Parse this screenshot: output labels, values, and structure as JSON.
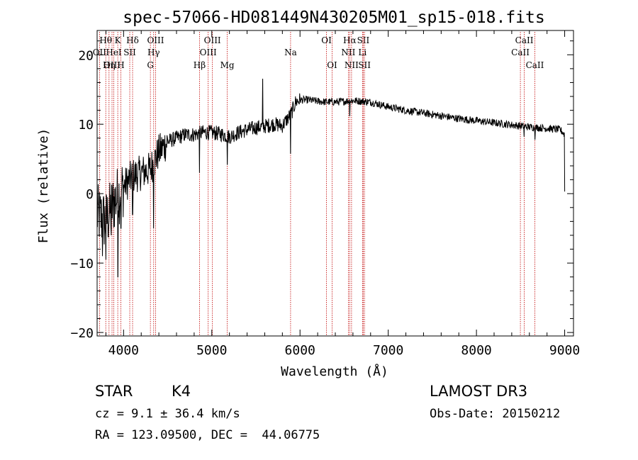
{
  "chart_data": {
    "type": "line",
    "title": "spec-57066-HD081449N430205M01_sp15-018.fits",
    "xlabel": "Wavelength (Å)",
    "ylabel": "Flux (relative)",
    "xlim": [
      3700,
      9100
    ],
    "ylim": [
      -20.5,
      23.5
    ],
    "x_ticks": [
      4000,
      5000,
      6000,
      7000,
      8000,
      9000
    ],
    "y_ticks": [
      -20,
      -10,
      0,
      10,
      20
    ],
    "grid": false,
    "series": [
      {
        "name": "spectrum",
        "color": "#000000",
        "continuum": [
          [
            3700,
            -3
          ],
          [
            3800,
            -4
          ],
          [
            3900,
            -1
          ],
          [
            4000,
            1
          ],
          [
            4100,
            2.5
          ],
          [
            4200,
            3
          ],
          [
            4300,
            3.5
          ],
          [
            4400,
            6
          ],
          [
            4500,
            7.5
          ],
          [
            4600,
            8
          ],
          [
            4700,
            8.5
          ],
          [
            4800,
            8.5
          ],
          [
            4900,
            8.8
          ],
          [
            5000,
            8.8
          ],
          [
            5100,
            8.6
          ],
          [
            5200,
            8.2
          ],
          [
            5300,
            8.8
          ],
          [
            5400,
            9.2
          ],
          [
            5500,
            9.5
          ],
          [
            5600,
            9.7
          ],
          [
            5700,
            10
          ],
          [
            5800,
            9.8
          ],
          [
            5900,
            11.5
          ],
          [
            5950,
            13.2
          ],
          [
            6000,
            13.5
          ],
          [
            6100,
            13.5
          ],
          [
            6200,
            13.3
          ],
          [
            6300,
            13.2
          ],
          [
            6400,
            13.2
          ],
          [
            6500,
            13.3
          ],
          [
            6600,
            13.4
          ],
          [
            6700,
            13.3
          ],
          [
            6800,
            13.2
          ],
          [
            7000,
            12.5
          ],
          [
            7200,
            12
          ],
          [
            7400,
            11.6
          ],
          [
            7600,
            11.2
          ],
          [
            7800,
            10.8
          ],
          [
            8000,
            10.5
          ],
          [
            8200,
            10.2
          ],
          [
            8400,
            9.9
          ],
          [
            8600,
            9.6
          ],
          [
            8800,
            9.4
          ],
          [
            8950,
            9.2
          ],
          [
            9000,
            8.5
          ]
        ],
        "features": [
          [
            3760,
            -9
          ],
          [
            3800,
            -9.5
          ],
          [
            3860,
            -6
          ],
          [
            3935,
            -12
          ],
          [
            3970,
            -5
          ],
          [
            4102,
            -3
          ],
          [
            4340,
            -5
          ],
          [
            4860,
            3
          ],
          [
            5175,
            4.2
          ],
          [
            5577,
            16.5
          ],
          [
            5893,
            5.8
          ],
          [
            6563,
            11.2
          ],
          [
            8540,
            8.2
          ],
          [
            8663,
            7.8
          ],
          [
            9000,
            0.3
          ]
        ]
      }
    ],
    "line_ids": [
      {
        "label": "Hθ",
        "wave": 3798,
        "row": 1
      },
      {
        "label": "OII",
        "wave": 3727,
        "row": 2
      },
      {
        "label": "OIII",
        "wave": 3869,
        "row": 3
      },
      {
        "label": "K",
        "wave": 3934,
        "row": 1
      },
      {
        "label": "HeI",
        "wave": 3889,
        "row": 2
      },
      {
        "label": "Hη",
        "wave": 3835,
        "row": 3
      },
      {
        "label": "SII",
        "wave": 4070,
        "row": 2
      },
      {
        "label": "H",
        "wave": 3969,
        "row": 3
      },
      {
        "label": "Hδ",
        "wave": 4102,
        "row": 1
      },
      {
        "label": "OIII",
        "wave": 4363,
        "row": 1
      },
      {
        "label": "Hγ",
        "wave": 4341,
        "row": 2
      },
      {
        "label": "G",
        "wave": 4304,
        "row": 3
      },
      {
        "label": "OIII",
        "wave": 5007,
        "row": 1
      },
      {
        "label": "OIII",
        "wave": 4959,
        "row": 2
      },
      {
        "label": "Hβ",
        "wave": 4861,
        "row": 3
      },
      {
        "label": "Mg",
        "wave": 5175,
        "row": 3
      },
      {
        "label": "Na",
        "wave": 5893,
        "row": 2
      },
      {
        "label": "OI",
        "wave": 6300,
        "row": 1
      },
      {
        "label": "OI",
        "wave": 6364,
        "row": 3
      },
      {
        "label": "Hα",
        "wave": 6563,
        "row": 1
      },
      {
        "label": "NII",
        "wave": 6548,
        "row": 2
      },
      {
        "label": "NII",
        "wave": 6584,
        "row": 3
      },
      {
        "label": "SII",
        "wave": 6717,
        "row": 1
      },
      {
        "label": "Li",
        "wave": 6708,
        "row": 2
      },
      {
        "label": "SII",
        "wave": 6731,
        "row": 3
      },
      {
        "label": "CaII",
        "wave": 8542,
        "row": 1
      },
      {
        "label": "CaII",
        "wave": 8498,
        "row": 2
      },
      {
        "label": "CaII",
        "wave": 8662,
        "row": 3
      }
    ]
  },
  "info": {
    "class": "STAR",
    "subclass": "K4",
    "survey": "LAMOST DR3",
    "cz": "cz = 9.1 ± 36.4 km/s",
    "obs_date": "Obs-Date: 20150212",
    "radec": "RA = 123.09500, DEC =  44.06775"
  },
  "colors": {
    "spectrum": "#000000",
    "line_marker": "#c00000",
    "background": "#ffffff"
  }
}
